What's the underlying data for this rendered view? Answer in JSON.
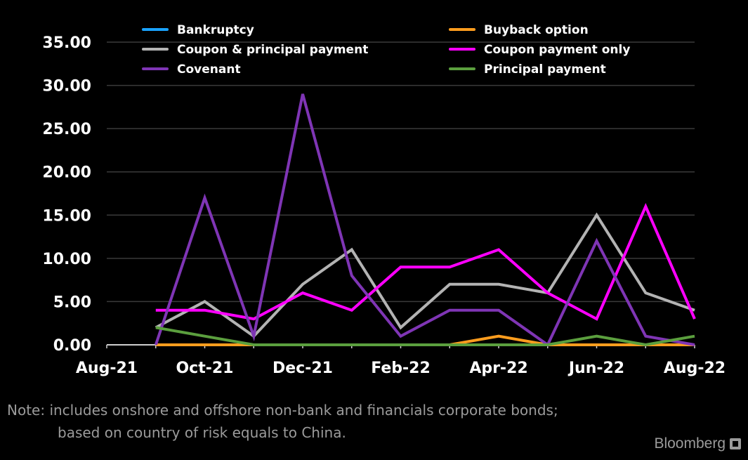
{
  "chart_data": {
    "type": "line",
    "title": "",
    "xlabel": "",
    "ylabel": "",
    "ylim": [
      0,
      35
    ],
    "y_ticks": [
      "0.00",
      "5.00",
      "10.00",
      "15.00",
      "20.00",
      "25.00",
      "30.00",
      "35.00"
    ],
    "x_tick_labels": [
      "Aug-21",
      "Oct-21",
      "Dec-21",
      "Feb-22",
      "Apr-22",
      "Jun-22",
      "Aug-22"
    ],
    "x": [
      "Aug-21",
      "Sep-21",
      "Oct-21",
      "Nov-21",
      "Dec-21",
      "Jan-22",
      "Feb-22",
      "Mar-22",
      "Apr-22",
      "May-22",
      "Jun-22",
      "Jul-22",
      "Aug-22"
    ],
    "grid": true,
    "legend_placement": "top",
    "series": [
      {
        "name": "Bankruptcy",
        "color": "#1aa3ff",
        "values": [
          null,
          0,
          0,
          0,
          0,
          0,
          0,
          0,
          0,
          0,
          0,
          0,
          0
        ]
      },
      {
        "name": "Buyback option",
        "color": "#ff9d1e",
        "values": [
          null,
          0,
          0,
          0,
          0,
          0,
          0,
          0,
          1,
          0,
          0,
          0,
          0
        ]
      },
      {
        "name": "Coupon & principal payment",
        "color": "#b3b3b3",
        "values": [
          null,
          2,
          5,
          1,
          7,
          11,
          2,
          7,
          7,
          6,
          15,
          6,
          4
        ]
      },
      {
        "name": "Coupon payment only",
        "color": "#ff00ff",
        "values": [
          null,
          4,
          4,
          3,
          6,
          4,
          9,
          9,
          11,
          6,
          3,
          16,
          3
        ]
      },
      {
        "name": "Covenant",
        "color": "#7f35b5",
        "values": [
          null,
          0,
          17,
          1,
          29,
          8,
          1,
          4,
          4,
          0,
          12,
          1,
          0
        ]
      },
      {
        "name": "Principal payment",
        "color": "#5b9f3e",
        "values": [
          null,
          2,
          1,
          0,
          0,
          0,
          0,
          0,
          0,
          0,
          1,
          0,
          1
        ]
      }
    ]
  },
  "note": {
    "line1": "Note: includes onshore and offshore non-bank and financials corporate bonds;",
    "line2": "based on country of risk equals to China."
  },
  "brand": {
    "name": "Bloomberg",
    "icon": "bloomberg-terminal-icon"
  }
}
